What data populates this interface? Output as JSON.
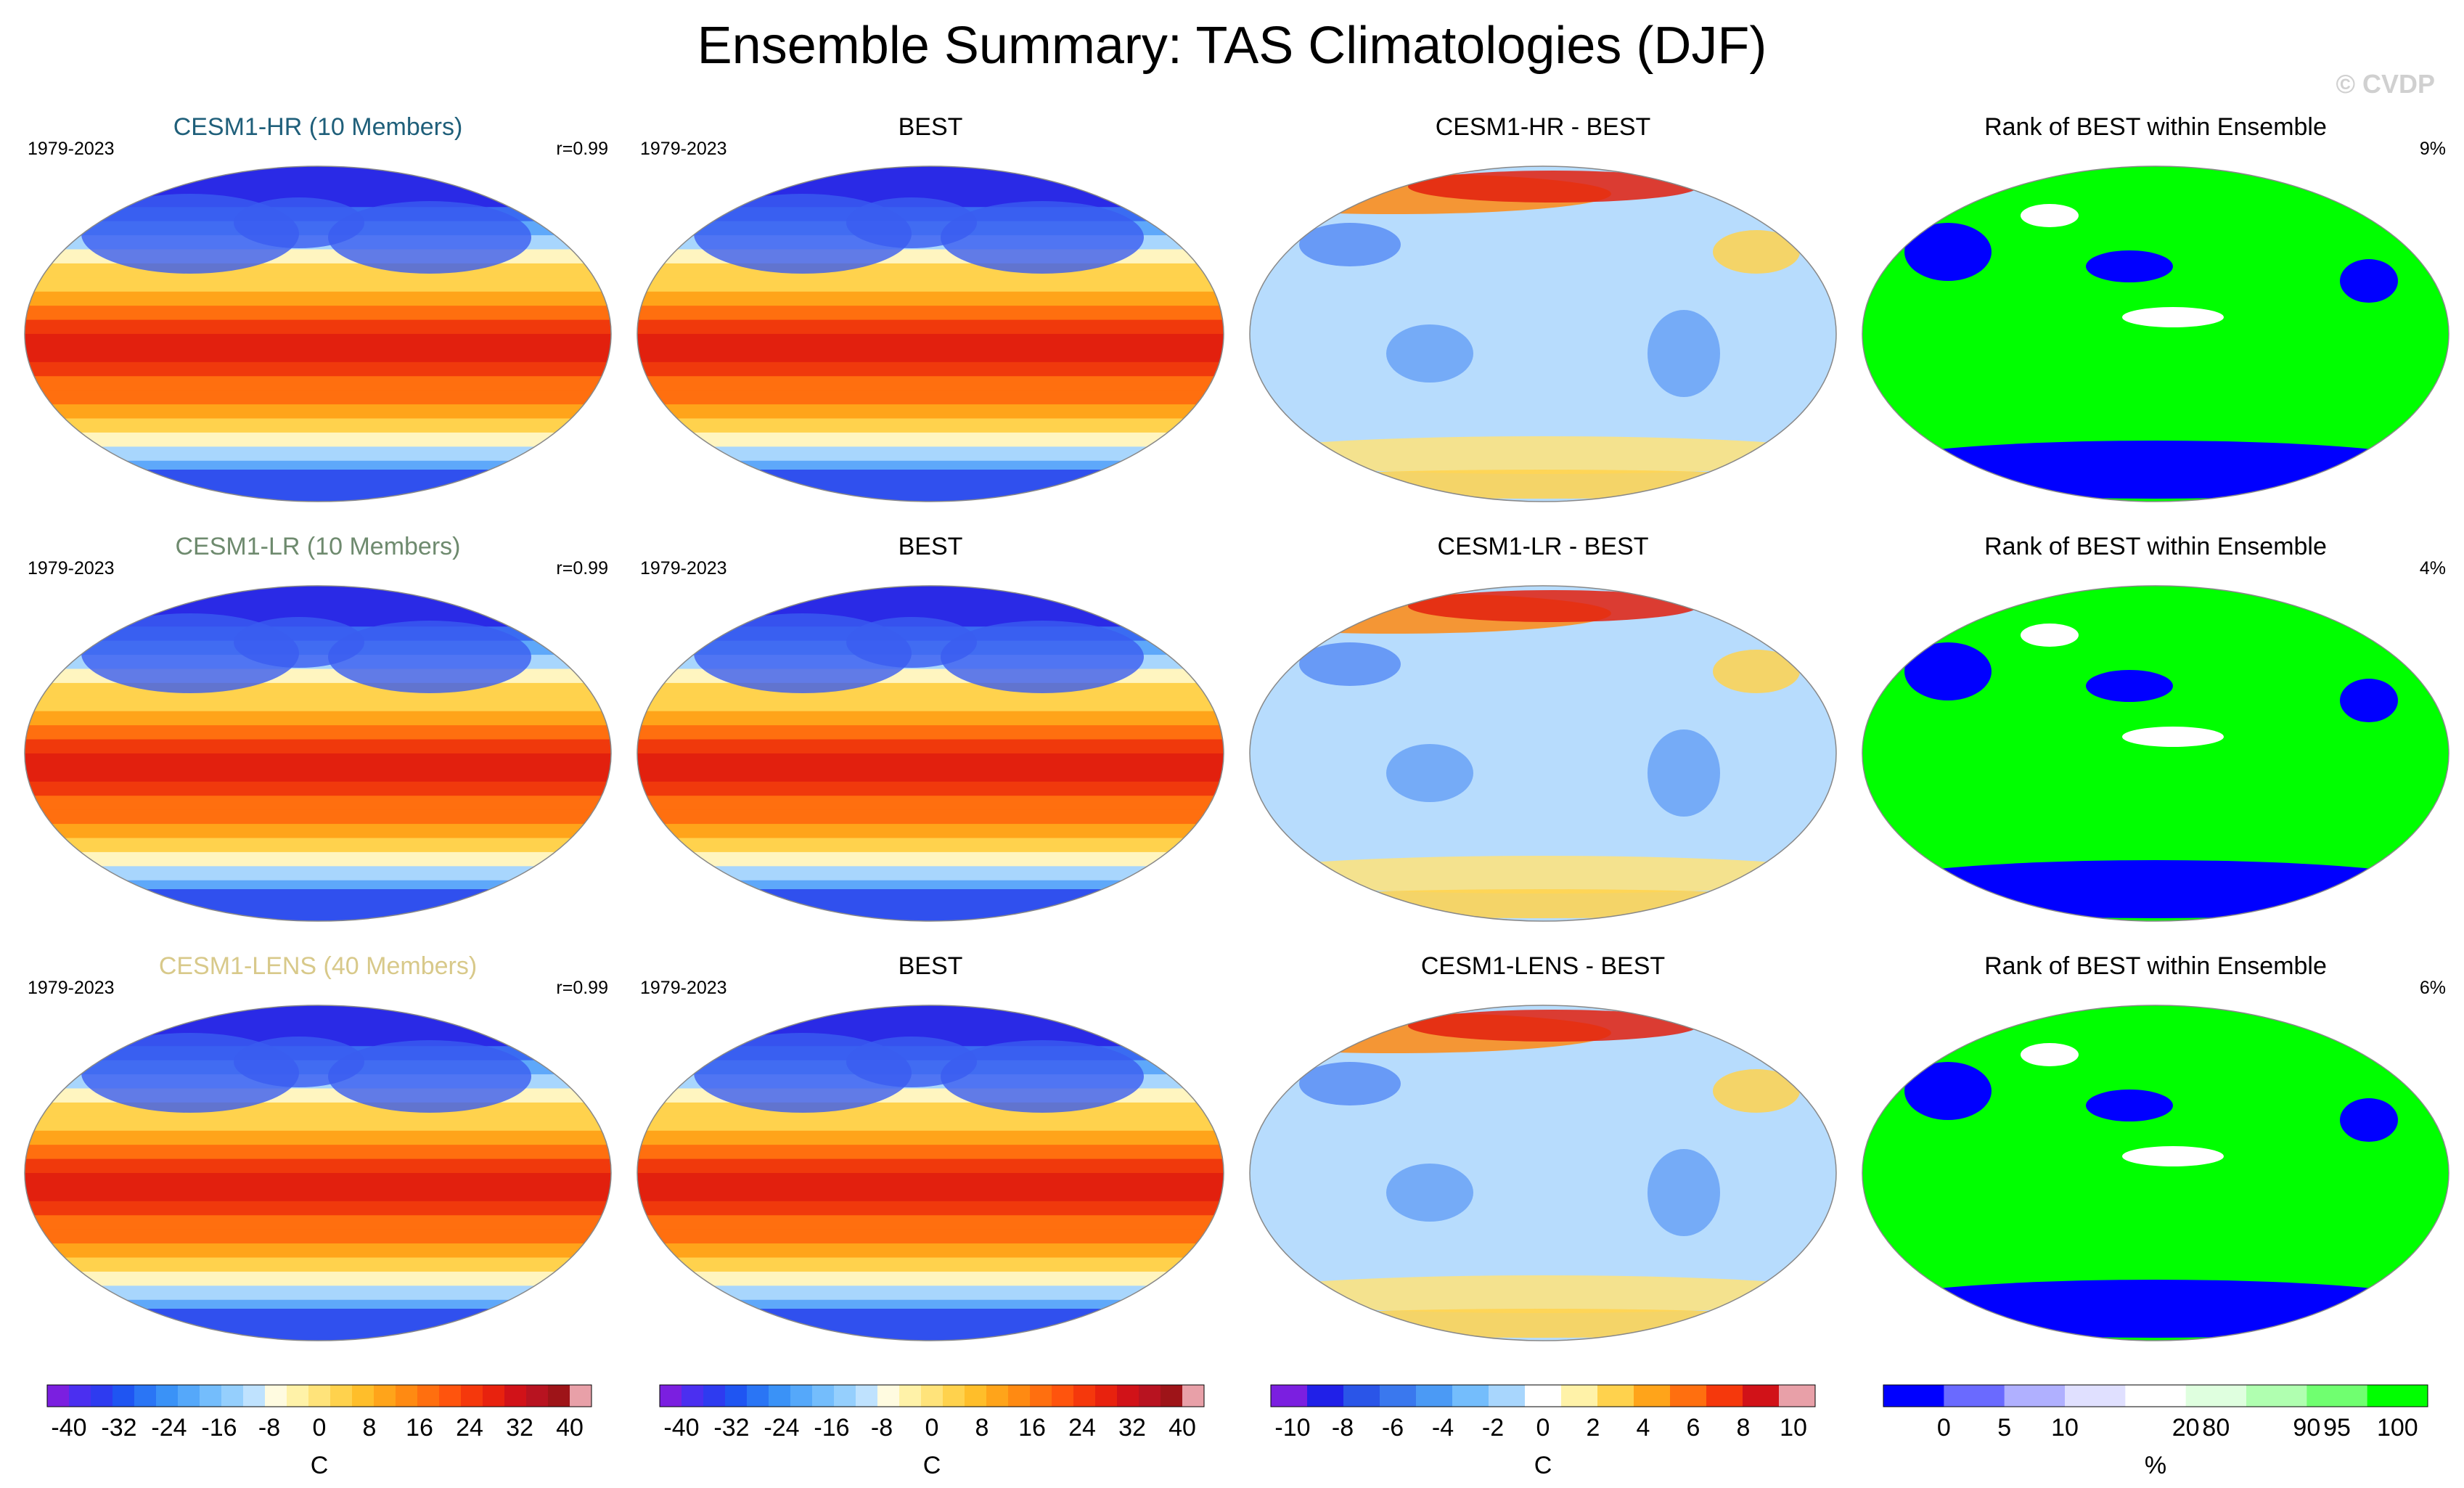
{
  "title": "Ensemble Summary: TAS Climatologies (DJF)",
  "copyright": "© CVDP",
  "rows": [
    {
      "panels": [
        {
          "kind": "model",
          "title": "CESM1-HR (10 Members)",
          "title_color": "#1f5f7a",
          "left": "1979-2023",
          "right": "r=0.99"
        },
        {
          "kind": "obs",
          "title": "BEST",
          "title_color": "#000000",
          "left": "1979-2023",
          "right": ""
        },
        {
          "kind": "diff",
          "title": "CESM1-HR - BEST",
          "title_color": "#000000",
          "left": "",
          "right": ""
        },
        {
          "kind": "rank",
          "title": "Rank of BEST within Ensemble",
          "title_color": "#000000",
          "left": "",
          "right": "9%"
        }
      ]
    },
    {
      "panels": [
        {
          "kind": "model",
          "title": "CESM1-LR (10 Members)",
          "title_color": "#6e8a6e",
          "left": "1979-2023",
          "right": "r=0.99"
        },
        {
          "kind": "obs",
          "title": "BEST",
          "title_color": "#000000",
          "left": "1979-2023",
          "right": ""
        },
        {
          "kind": "diff",
          "title": "CESM1-LR - BEST",
          "title_color": "#000000",
          "left": "",
          "right": ""
        },
        {
          "kind": "rank",
          "title": "Rank of BEST within Ensemble",
          "title_color": "#000000",
          "left": "",
          "right": "4%"
        }
      ]
    },
    {
      "panels": [
        {
          "kind": "model",
          "title": "CESM1-LENS (40 Members)",
          "title_color": "#d8c98a",
          "left": "1979-2023",
          "right": "r=0.99"
        },
        {
          "kind": "obs",
          "title": "BEST",
          "title_color": "#000000",
          "left": "1979-2023",
          "right": ""
        },
        {
          "kind": "diff",
          "title": "CESM1-LENS - BEST",
          "title_color": "#000000",
          "left": "",
          "right": ""
        },
        {
          "kind": "rank",
          "title": "Rank of BEST within Ensemble",
          "title_color": "#000000",
          "left": "",
          "right": "6%"
        }
      ]
    }
  ],
  "colorbars": [
    {
      "unit": "C",
      "labels": [
        "-40",
        "-32",
        "-24",
        "-16",
        "-8",
        "0",
        "8",
        "16",
        "24",
        "32",
        "40"
      ],
      "colors": [
        "#7b1fe0",
        "#4b2ff0",
        "#2e3bf0",
        "#1f55f2",
        "#2a75f5",
        "#3a92f7",
        "#55a8fa",
        "#74bdfc",
        "#95cffd",
        "#bfe2fe",
        "#fffbe0",
        "#fff2a8",
        "#ffe37a",
        "#ffd24d",
        "#ffbe2a",
        "#ffa41a",
        "#ff8a12",
        "#ff6f0f",
        "#ff540d",
        "#f5380c",
        "#e8220e",
        "#d11218",
        "#b81320",
        "#9e1418",
        "#e8a0a8"
      ]
    },
    {
      "unit": "C",
      "labels": [
        "-40",
        "-32",
        "-24",
        "-16",
        "-8",
        "0",
        "8",
        "16",
        "24",
        "32",
        "40"
      ],
      "colors": [
        "#7b1fe0",
        "#4b2ff0",
        "#2e3bf0",
        "#1f55f2",
        "#2a75f5",
        "#3a92f7",
        "#55a8fa",
        "#74bdfc",
        "#95cffd",
        "#bfe2fe",
        "#fffbe0",
        "#fff2a8",
        "#ffe37a",
        "#ffd24d",
        "#ffbe2a",
        "#ffa41a",
        "#ff8a12",
        "#ff6f0f",
        "#ff540d",
        "#f5380c",
        "#e8220e",
        "#d11218",
        "#b81320",
        "#9e1418",
        "#e8a0a8"
      ]
    },
    {
      "unit": "C",
      "labels": [
        "-10",
        "-8",
        "-6",
        "-4",
        "-2",
        "0",
        "2",
        "4",
        "6",
        "8",
        "10"
      ],
      "colors": [
        "#7b1fe0",
        "#2020e8",
        "#2a55e8",
        "#3a78ee",
        "#4b9af5",
        "#74bdfc",
        "#a8d6fd",
        "#ffffff",
        "#fff2a8",
        "#ffd24d",
        "#ffa41a",
        "#ff6f0f",
        "#f5380c",
        "#d11218",
        "#e8a0a8"
      ]
    },
    {
      "unit": "%",
      "labels": [
        "0",
        "5",
        "10",
        "20",
        "80",
        "90",
        "95",
        "100"
      ],
      "colors": [
        "#0000ff",
        "#6a6aff",
        "#b0b0ff",
        "#e0e0ff",
        "#ffffff",
        "#dfffdf",
        "#b0ffb0",
        "#70ff70",
        "#00ff00"
      ]
    }
  ],
  "chart_data": [
    {
      "type": "heatmap",
      "title": "CESM1-HR (10 Members)",
      "period": "1979-2023",
      "pattern_correlation": 0.99,
      "units": "C",
      "levels": [
        -40,
        -32,
        -24,
        -16,
        -8,
        0,
        8,
        16,
        24,
        32,
        40
      ]
    },
    {
      "type": "heatmap",
      "title": "BEST",
      "period": "1979-2023",
      "units": "C",
      "levels": [
        -40,
        -32,
        -24,
        -16,
        -8,
        0,
        8,
        16,
        24,
        32,
        40
      ]
    },
    {
      "type": "heatmap",
      "title": "CESM1-HR - BEST",
      "units": "C",
      "levels": [
        -10,
        -8,
        -6,
        -4,
        -2,
        0,
        2,
        4,
        6,
        8,
        10
      ]
    },
    {
      "type": "heatmap",
      "title": "Rank of BEST within Ensemble",
      "percent": "9%",
      "units": "%",
      "levels": [
        0,
        5,
        10,
        20,
        80,
        90,
        95,
        100
      ]
    },
    {
      "type": "heatmap",
      "title": "CESM1-LR (10 Members)",
      "period": "1979-2023",
      "pattern_correlation": 0.99,
      "units": "C",
      "levels": [
        -40,
        -32,
        -24,
        -16,
        -8,
        0,
        8,
        16,
        24,
        32,
        40
      ]
    },
    {
      "type": "heatmap",
      "title": "BEST",
      "period": "1979-2023",
      "units": "C",
      "levels": [
        -40,
        -32,
        -24,
        -16,
        -8,
        0,
        8,
        16,
        24,
        32,
        40
      ]
    },
    {
      "type": "heatmap",
      "title": "CESM1-LR - BEST",
      "units": "C",
      "levels": [
        -10,
        -8,
        -6,
        -4,
        -2,
        0,
        2,
        4,
        6,
        8,
        10
      ]
    },
    {
      "type": "heatmap",
      "title": "Rank of BEST within Ensemble",
      "percent": "4%",
      "units": "%",
      "levels": [
        0,
        5,
        10,
        20,
        80,
        90,
        95,
        100
      ]
    },
    {
      "type": "heatmap",
      "title": "CESM1-LENS (40 Members)",
      "period": "1979-2023",
      "pattern_correlation": 0.99,
      "units": "C",
      "levels": [
        -40,
        -32,
        -24,
        -16,
        -8,
        0,
        8,
        16,
        24,
        32,
        40
      ]
    },
    {
      "type": "heatmap",
      "title": "BEST",
      "period": "1979-2023",
      "units": "C",
      "levels": [
        -40,
        -32,
        -24,
        -16,
        -8,
        0,
        8,
        16,
        24,
        32,
        40
      ]
    },
    {
      "type": "heatmap",
      "title": "CESM1-LENS - BEST",
      "units": "C",
      "levels": [
        -10,
        -8,
        -6,
        -4,
        -2,
        0,
        2,
        4,
        6,
        8,
        10
      ]
    },
    {
      "type": "heatmap",
      "title": "Rank of BEST within Ensemble",
      "percent": "6%",
      "units": "%",
      "levels": [
        0,
        5,
        10,
        20,
        80,
        90,
        95,
        100
      ]
    }
  ]
}
